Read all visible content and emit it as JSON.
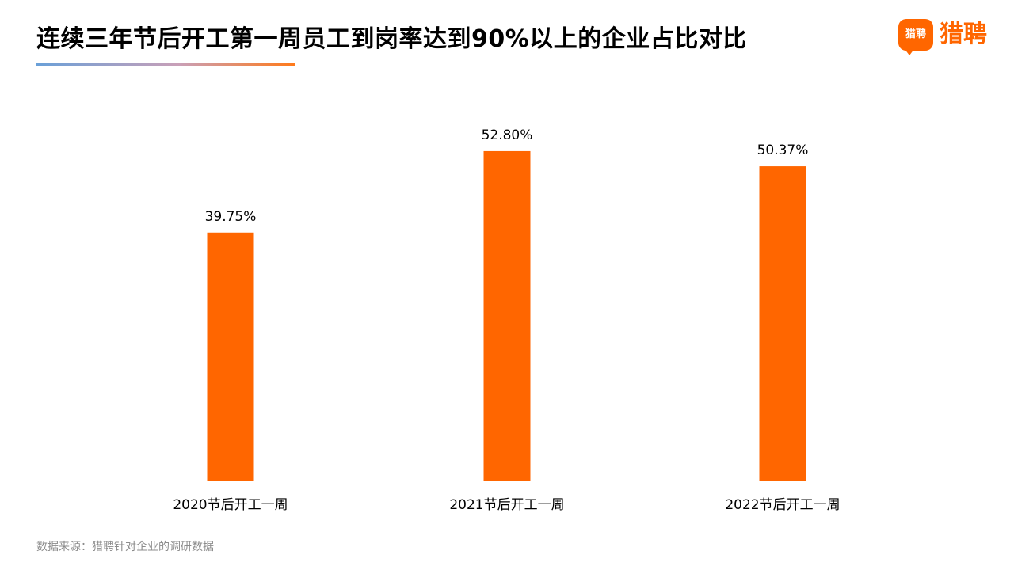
{
  "header": {
    "title": "连续三年节后开工第一周员工到岗率达到90%以上的企业占比对比"
  },
  "logo": {
    "badge_text": "猎聘",
    "brand_text": "猎聘",
    "icon": "liepin-logo-icon"
  },
  "colors": {
    "bar": "#ff6600",
    "accent": "#ff6600",
    "gradient_start": "#6aa0d8",
    "gradient_end": "#ff7a1a"
  },
  "chart_data": {
    "type": "bar",
    "title": "连续三年节后开工第一周员工到岗率达到90%以上的企业占比对比",
    "xlabel": "",
    "ylabel": "",
    "categories": [
      "2020节后开工一周",
      "2021节后开工一周",
      "2022节后开工一周"
    ],
    "values": [
      39.75,
      52.8,
      50.37
    ],
    "value_labels": [
      "39.75%",
      "52.80%",
      "50.37%"
    ],
    "ylim": [
      0,
      60
    ],
    "grid": false,
    "legend": "none"
  },
  "footer": {
    "source": "数据来源：猎聘针对企业的调研数据"
  }
}
